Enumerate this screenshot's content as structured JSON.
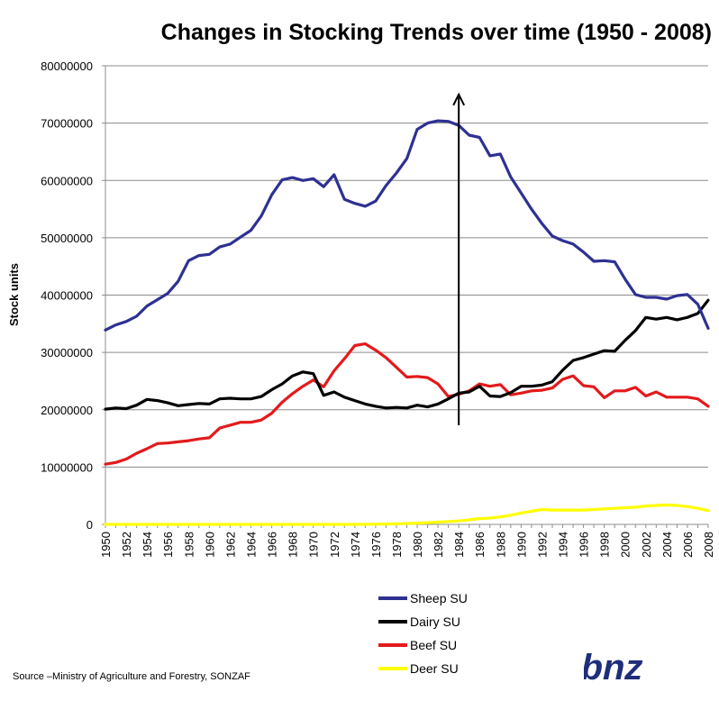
{
  "chart_data": {
    "type": "line",
    "title": "Changes in Stocking Trends over time (1950 - 2008)",
    "ylabel": "Stock units",
    "xlabel": "",
    "ylim": [
      0,
      80000000
    ],
    "xlim": [
      1950,
      2008
    ],
    "y_ticks": [
      "0",
      "10000000",
      "20000000",
      "30000000",
      "40000000",
      "50000000",
      "60000000",
      "70000000",
      "80000000"
    ],
    "x_ticks": [
      "1950",
      "1952",
      "1954",
      "1956",
      "1958",
      "1960",
      "1962",
      "1964",
      "1966",
      "1968",
      "1970",
      "1972",
      "1974",
      "1976",
      "1978",
      "1980",
      "1982",
      "1984",
      "1986",
      "1988",
      "1990",
      "1992",
      "1994",
      "1996",
      "1998",
      "2000",
      "2002",
      "2004",
      "2006",
      "2008"
    ],
    "grid": true,
    "legend_position": "bottom-center",
    "annotation": {
      "type": "vertical-arrow",
      "x": 1984,
      "y_top": 75000000
    },
    "x": [
      1950,
      1951,
      1952,
      1953,
      1954,
      1955,
      1956,
      1957,
      1958,
      1959,
      1960,
      1961,
      1962,
      1963,
      1964,
      1965,
      1966,
      1967,
      1968,
      1969,
      1970,
      1971,
      1972,
      1973,
      1974,
      1975,
      1976,
      1977,
      1978,
      1979,
      1980,
      1981,
      1982,
      1983,
      1984,
      1985,
      1986,
      1987,
      1988,
      1989,
      1990,
      1991,
      1992,
      1993,
      1994,
      1995,
      1996,
      1997,
      1998,
      1999,
      2000,
      2001,
      2002,
      2003,
      2004,
      2005,
      2006,
      2007,
      2008
    ],
    "series": [
      {
        "name": "Sheep SU",
        "color": "#2e3192",
        "values": [
          33900000,
          34800000,
          35400000,
          36300000,
          38100000,
          39200000,
          40300000,
          42400000,
          46000000,
          46900000,
          47100000,
          48400000,
          48900000,
          50100000,
          51300000,
          53800000,
          57500000,
          60100000,
          60500000,
          60000000,
          60300000,
          58900000,
          61000000,
          56700000,
          56000000,
          55500000,
          56400000,
          59100000,
          61300000,
          63800000,
          68900000,
          70000000,
          70400000,
          70300000,
          69600000,
          67900000,
          67500000,
          64300000,
          64600000,
          60600000,
          57800000,
          55000000,
          52500000,
          50300000,
          49500000,
          48900000,
          47500000,
          45900000,
          46000000,
          45800000,
          42800000,
          40100000,
          39600000,
          39600000,
          39300000,
          39900000,
          40100000,
          38400000,
          34200000
        ]
      },
      {
        "name": "Dairy SU",
        "color": "#000000",
        "values": [
          20100000,
          20300000,
          20200000,
          20800000,
          21800000,
          21600000,
          21200000,
          20700000,
          20900000,
          21100000,
          21000000,
          21900000,
          22000000,
          21900000,
          21900000,
          22300000,
          23500000,
          24500000,
          25900000,
          26600000,
          26300000,
          22500000,
          23100000,
          22200000,
          21600000,
          21000000,
          20600000,
          20300000,
          20400000,
          20300000,
          20800000,
          20500000,
          21000000,
          21900000,
          22900000,
          23100000,
          24100000,
          22400000,
          22300000,
          23000000,
          24100000,
          24100000,
          24300000,
          24900000,
          26900000,
          28600000,
          29100000,
          29700000,
          30300000,
          30200000,
          32100000,
          33800000,
          36100000,
          35800000,
          36100000,
          35700000,
          36100000,
          36800000,
          39100000
        ]
      },
      {
        "name": "Beef SU",
        "color": "#e31a1c",
        "values": [
          10500000,
          10800000,
          11400000,
          12400000,
          13200000,
          14100000,
          14200000,
          14400000,
          14600000,
          14900000,
          15100000,
          16800000,
          17300000,
          17800000,
          17800000,
          18200000,
          19400000,
          21300000,
          22800000,
          24100000,
          25200000,
          24000000,
          26800000,
          28900000,
          31200000,
          31500000,
          30400000,
          29100000,
          27400000,
          25700000,
          25800000,
          25600000,
          24500000,
          22300000,
          22700000,
          23300000,
          24500000,
          24100000,
          24400000,
          22600000,
          22900000,
          23300000,
          23400000,
          23800000,
          25300000,
          25900000,
          24200000,
          24000000,
          22100000,
          23300000,
          23300000,
          23900000,
          22400000,
          23100000,
          22200000,
          22200000,
          22200000,
          21900000,
          20600000
        ]
      },
      {
        "name": "Deer SU",
        "color": "#ffff00",
        "values": [
          0,
          0,
          0,
          0,
          0,
          0,
          0,
          0,
          0,
          0,
          0,
          0,
          0,
          0,
          0,
          0,
          0,
          0,
          0,
          0,
          0,
          0,
          0,
          0,
          0,
          10000,
          30000,
          60000,
          100000,
          150000,
          220000,
          300000,
          400000,
          500000,
          600000,
          800000,
          1000000,
          1100000,
          1300000,
          1600000,
          2000000,
          2300000,
          2600000,
          2500000,
          2500000,
          2500000,
          2500000,
          2600000,
          2700000,
          2800000,
          2900000,
          3000000,
          3200000,
          3300000,
          3400000,
          3300000,
          3100000,
          2800000,
          2400000
        ]
      }
    ]
  },
  "source_note": "Source –Ministry of Agriculture and Forestry, SONZAF",
  "logo": {
    "text": "bnz",
    "color": "#1f2e7a"
  }
}
